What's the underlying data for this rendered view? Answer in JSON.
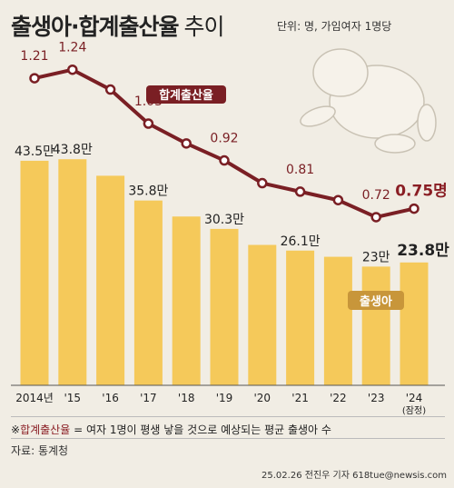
{
  "title": "출생아·합계출산율",
  "title_suffix": "추이",
  "unit": "단위: 명, 가임여자 1명당",
  "footnote": {
    "prefix": "※",
    "term": "합계출산율",
    "definition": " = 여자 1명이 평생 낳을 것으로 예상되는 평균 출생아 수"
  },
  "source": "자료: 통계청",
  "credit": "25.02.26 전진우 기자 618tue@newsis.com",
  "colors": {
    "bar": "#f5c95a",
    "bar_top": "#f9d679",
    "line": "#7a1f24",
    "bg": "#f1ede4",
    "text": "#222222",
    "highlight": "#8a1e24"
  },
  "chart_data": {
    "type": "bar",
    "categories": [
      "2014년",
      "'15",
      "'16",
      "'17",
      "'18",
      "'19",
      "'20",
      "'21",
      "'22",
      "'23",
      "'24"
    ],
    "x_sublabel": "(잠정)",
    "bar_series": {
      "name": "출생아",
      "values": [
        43.5,
        43.8,
        40.6,
        35.8,
        32.7,
        30.3,
        27.2,
        26.1,
        24.9,
        23.0,
        23.8
      ],
      "labels": [
        "43.5만",
        "43.8만",
        "",
        "35.8만",
        "",
        "30.3만",
        "",
        "26.1만",
        "",
        "23만",
        "23.8만"
      ],
      "ylim": [
        0,
        50
      ]
    },
    "line_series": {
      "name": "합계출산율",
      "values": [
        1.21,
        1.24,
        1.17,
        1.05,
        0.98,
        0.92,
        0.84,
        0.81,
        0.78,
        0.72,
        0.75
      ],
      "labels": [
        "1.21",
        "1.24",
        "",
        "1.05",
        "",
        "0.92",
        "",
        "0.81",
        "",
        "0.72",
        "0.75명"
      ],
      "ylim": [
        0.55,
        1.3
      ]
    }
  }
}
